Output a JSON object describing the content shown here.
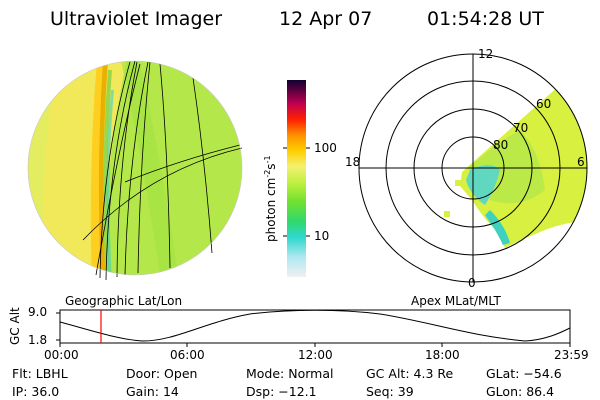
{
  "header": {
    "instrument": "Ultraviolet Imager",
    "date": "12 Apr 07",
    "time": "01:54:28 UT"
  },
  "colorbar": {
    "unit_label": "photon cm",
    "unit_exp1": "-2",
    "unit_s": "s",
    "unit_exp2": "-1",
    "ticks": [
      "100",
      "10"
    ],
    "scale": "log"
  },
  "left_panel": {
    "caption": "Geographic Lat/Lon"
  },
  "right_panel": {
    "caption": "Apex MLat/MLT",
    "mlt_labels": {
      "top": "12",
      "left": "18",
      "right": "6",
      "bottom": "0"
    },
    "mlat_labels": [
      "60",
      "70",
      "80"
    ]
  },
  "timeline": {
    "ylabel": "GC Alt",
    "yticks": [
      "9.0",
      "1.8"
    ],
    "xticks": [
      "00:00",
      "06:00",
      "12:00",
      "18:00",
      "23:59"
    ],
    "marker_time": "01:54:28"
  },
  "info": {
    "row1": [
      {
        "label": "Flt:",
        "value": "LBHL"
      },
      {
        "label": "Door:",
        "value": "Open"
      },
      {
        "label": "Mode:",
        "value": "Normal"
      },
      {
        "label": "GC Alt:",
        "value": "4.3 Re"
      },
      {
        "label": "GLat:",
        "value": "−54.6"
      }
    ],
    "row2": [
      {
        "label": "IP:",
        "value": "36.0"
      },
      {
        "label": "Gain:",
        "value": "14"
      },
      {
        "label": "Dsp:",
        "value": "−12.1"
      },
      {
        "label": "Seq:",
        "value": "39"
      },
      {
        "label": "GLon:",
        "value": "86.4"
      }
    ]
  },
  "colors": {
    "earth_fill": "#b4e84a",
    "dayside": "#f2e95a",
    "limb": "#ffb000",
    "aurora": "#40d0c0",
    "marker": "#ff0000"
  }
}
